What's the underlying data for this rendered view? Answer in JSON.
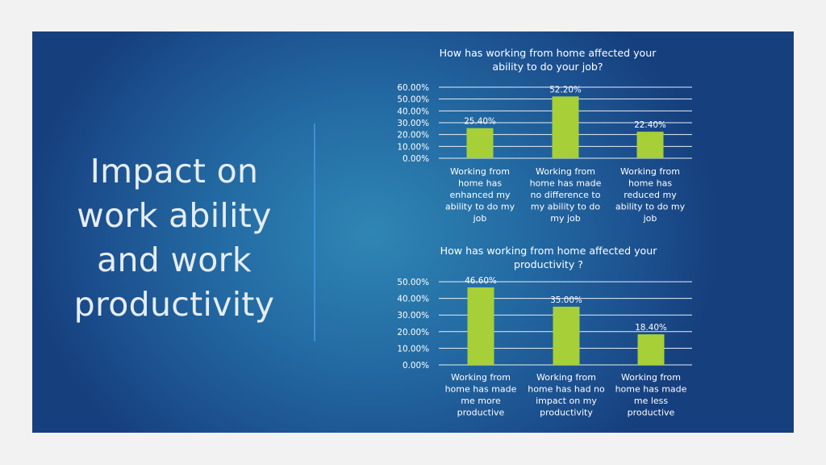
{
  "slide": {
    "title_lines": [
      "Impact on",
      "work ability",
      "and work",
      "productivity"
    ],
    "colors": {
      "bar": "#a6cf38",
      "background": "#1f5e98",
      "divider": "#3d8fd6"
    }
  },
  "chart_data": [
    {
      "type": "bar",
      "title": [
        "How has working from home affected your",
        "ability to do your job?"
      ],
      "categories": [
        [
          "Working from",
          "home has",
          "enhanced my",
          "ability to do my",
          "job"
        ],
        [
          "Working from",
          "home has made",
          "no difference to",
          "my ability to do",
          "my job"
        ],
        [
          "Working from",
          "home has",
          "reduced my",
          "ability to do my",
          "job"
        ]
      ],
      "values": [
        25.4,
        52.2,
        22.4
      ],
      "data_labels": [
        "25.40%",
        "52.20%",
        "22.40%"
      ],
      "ylim": [
        0,
        60
      ],
      "yticks": [
        "0.00%",
        "10.00%",
        "20.00%",
        "30.00%",
        "40.00%",
        "50.00%",
        "60.00%"
      ],
      "grid": true
    },
    {
      "type": "bar",
      "title": [
        "How has working from home affected your",
        "productivity ?"
      ],
      "categories": [
        [
          "Working from",
          "home has made",
          "me more",
          "productive"
        ],
        [
          "Working from",
          "home has had no",
          "impact on my",
          "productivity"
        ],
        [
          "Working from",
          "home has made",
          "me less",
          "productive"
        ]
      ],
      "values": [
        46.6,
        35.0,
        18.4
      ],
      "data_labels": [
        "46.60%",
        "35.00%",
        "18.40%"
      ],
      "ylim": [
        0,
        50
      ],
      "yticks": [
        "0.00%",
        "10.00%",
        "20.00%",
        "30.00%",
        "40.00%",
        "50.00%"
      ],
      "grid": true
    }
  ]
}
